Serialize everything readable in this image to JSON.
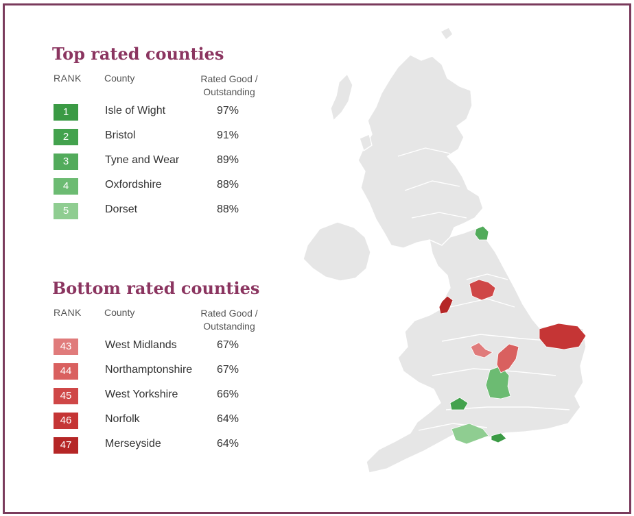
{
  "top": {
    "title": "Top rated counties",
    "headers": {
      "rank": "RANK",
      "county": "County",
      "rated_line1": "Rated Good /",
      "rated_line2": "Outstanding"
    },
    "rows": [
      {
        "rank": "1",
        "county": "Isle of Wight",
        "pct": "97%",
        "color": "#3a9a44"
      },
      {
        "rank": "2",
        "county": "Bristol",
        "pct": "91%",
        "color": "#43a24d"
      },
      {
        "rank": "3",
        "county": "Tyne and Wear",
        "pct": "89%",
        "color": "#52ab5b"
      },
      {
        "rank": "4",
        "county": "Oxfordshire",
        "pct": "88%",
        "color": "#6cbb72"
      },
      {
        "rank": "5",
        "county": "Dorset",
        "pct": "88%",
        "color": "#8fcd91"
      }
    ]
  },
  "bottom": {
    "title": "Bottom rated counties",
    "headers": {
      "rank": "RANK",
      "county": "County",
      "rated_line1": "Rated Good /",
      "rated_line2": "Outstanding"
    },
    "rows": [
      {
        "rank": "43",
        "county": "West Midlands",
        "pct": "67%",
        "color": "#e07b7b"
      },
      {
        "rank": "44",
        "county": "Northamptonshire",
        "pct": "67%",
        "color": "#d9605f"
      },
      {
        "rank": "45",
        "county": "West Yorkshire",
        "pct": "66%",
        "color": "#cf4747"
      },
      {
        "rank": "46",
        "county": "Norfolk",
        "pct": "64%",
        "color": "#c53535"
      },
      {
        "rank": "47",
        "county": "Merseyside",
        "pct": "64%",
        "color": "#b52626"
      }
    ]
  },
  "map": {
    "base_color": "#e6e6e6",
    "border_color": "#ffffff",
    "frame_color": "#7a3b5c",
    "title_color": "#8b3560"
  }
}
